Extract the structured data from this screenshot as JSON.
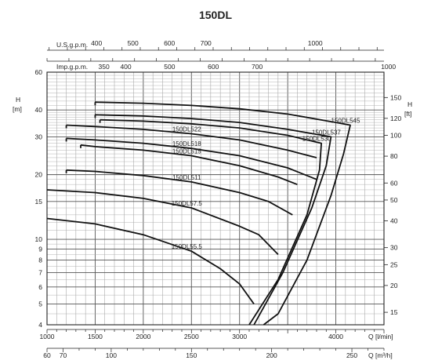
{
  "chart_data": {
    "type": "line",
    "title": "150DL",
    "grid": true,
    "y_scale": "log",
    "ylim": [
      4,
      60
    ],
    "xlim": [
      1000,
      4500
    ],
    "left_axis": {
      "unit_label": "H",
      "unit": "[m]",
      "ticks": [
        4,
        5,
        6,
        7,
        8,
        9,
        10,
        15,
        20,
        30,
        40,
        60
      ],
      "tick_labels": [
        "4",
        "5",
        "6",
        "7",
        "8",
        "9",
        "10",
        "15",
        "20",
        "30",
        "40",
        "60"
      ]
    },
    "right_axis": {
      "unit_label": "H",
      "unit": "[ft]",
      "ticks_ft": [
        15,
        20,
        25,
        30,
        40,
        50,
        60,
        80,
        100,
        120,
        150
      ],
      "tick_labels": [
        "15",
        "20",
        "25",
        "30",
        "40",
        "50",
        "60",
        "80",
        "100",
        "120",
        "150"
      ]
    },
    "bottom_axis_lpm": {
      "unit": "Q [l/min]",
      "ticks": [
        1000,
        1500,
        2000,
        2500,
        3000,
        3500,
        4000,
        4500
      ],
      "tick_labels": [
        "1000",
        "1500",
        "2000",
        "2500",
        "3000",
        "",
        "4000",
        ""
      ]
    },
    "bottom_axis_m3h": {
      "unit": "Q [m³/h]",
      "ticks": [
        60,
        70,
        100,
        150,
        200,
        250
      ],
      "tick_labels": [
        "60",
        "70",
        "100",
        "150",
        "200",
        "250"
      ]
    },
    "top_axis_usgpm": {
      "unit": "U.S.g.p.m.",
      "ticks": [
        400,
        500,
        600,
        700,
        1000,
        1500
      ],
      "tick_labels": [
        "400",
        "500",
        "600",
        "700",
        "1000",
        "1500"
      ]
    },
    "top_axis_impgpm": {
      "unit": "Imp.g.p.m.",
      "ticks": [
        350,
        400,
        500,
        600,
        700,
        1000
      ],
      "tick_labels": [
        "350",
        "400",
        "500",
        "600",
        "700",
        "1000"
      ]
    },
    "series": [
      {
        "name": "150DL545",
        "x": [
          1500,
          2000,
          2500,
          3000,
          3500,
          4000,
          4150,
          4080,
          3950,
          3700,
          3400,
          3250
        ],
        "y": [
          43.5,
          43,
          42,
          40.5,
          38.3,
          35,
          34,
          25,
          16,
          8,
          4.5,
          4
        ]
      },
      {
        "name": "150DL537",
        "x": [
          1500,
          2000,
          2500,
          3000,
          3500,
          3950,
          3900,
          3750,
          3450,
          3150
        ],
        "y": [
          38,
          37.5,
          36.5,
          35,
          32.5,
          30,
          22,
          14,
          7,
          4
        ]
      },
      {
        "name": "150DL530",
        "x": [
          1550,
          2000,
          2500,
          3000,
          3500,
          3850,
          3830,
          3700,
          3400,
          3100
        ],
        "y": [
          36,
          35.5,
          34.5,
          33,
          30.5,
          28,
          21,
          13,
          6.5,
          4
        ]
      },
      {
        "name": "150DL522",
        "x": [
          1200,
          1500,
          2000,
          2500,
          3000,
          3500,
          3800
        ],
        "y": [
          34,
          33.5,
          32.5,
          31,
          29,
          26,
          24
        ]
      },
      {
        "name": "150DL518",
        "x": [
          1200,
          1500,
          2000,
          2500,
          3000,
          3500,
          3800
        ],
        "y": [
          29.5,
          29,
          28,
          26.5,
          24.5,
          21.5,
          19
        ]
      },
      {
        "name": "150DL515",
        "x": [
          1350,
          1500,
          2000,
          2500,
          3000,
          3400,
          3600
        ],
        "y": [
          27.5,
          27,
          26,
          24.5,
          22,
          19.5,
          18
        ]
      },
      {
        "name": "150DL511",
        "x": [
          1200,
          1500,
          2000,
          2500,
          3000,
          3300,
          3550
        ],
        "y": [
          21,
          20.7,
          19.8,
          18.5,
          16.5,
          15,
          13
        ]
      },
      {
        "name": "150DL57.5",
        "x": [
          1000,
          1500,
          2000,
          2500,
          3000,
          3200,
          3400
        ],
        "y": [
          17,
          16.5,
          15.5,
          14,
          11.5,
          10.5,
          8.5
        ]
      },
      {
        "name": "150DL55.5",
        "x": [
          1000,
          1500,
          2000,
          2500,
          2800,
          3000,
          3150
        ],
        "y": [
          12.5,
          11.8,
          10.5,
          8.8,
          7.3,
          6.2,
          5
        ]
      }
    ]
  }
}
